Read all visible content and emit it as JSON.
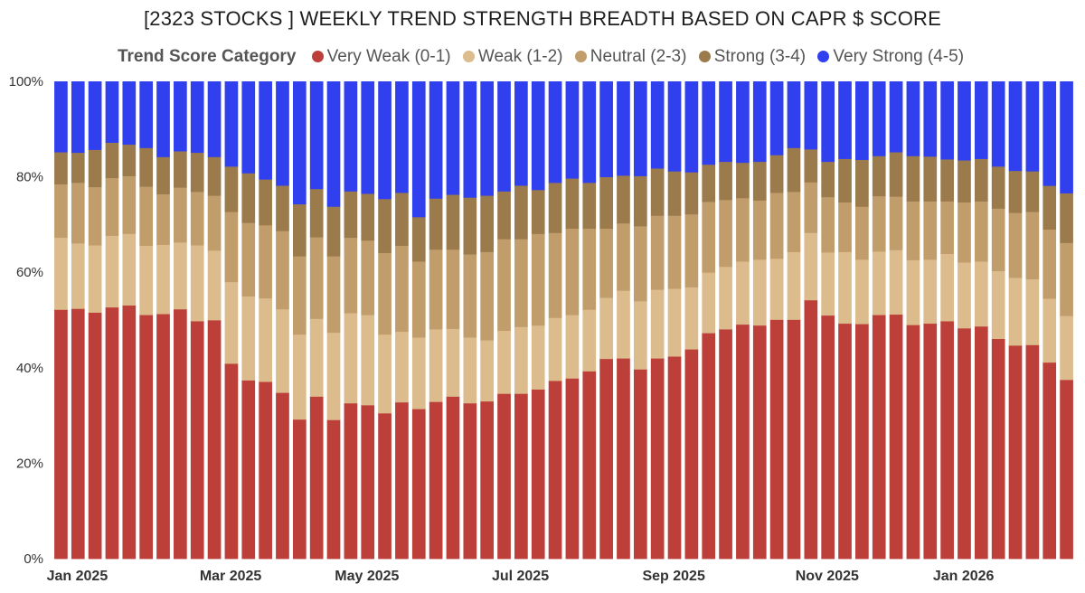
{
  "chart_data": {
    "type": "bar",
    "stacked": true,
    "normalized": true,
    "title": "[2323 STOCKS ] WEEKLY TREND STRENGTH BREADTH BASED ON CAPR $ SCORE",
    "legend_title": "Trend Score Category",
    "legend_position": "top",
    "y_ticks": [
      "0%",
      "20%",
      "40%",
      "60%",
      "80%",
      "100%"
    ],
    "ylim": [
      0,
      100
    ],
    "x_tick_labels": [
      {
        "index": 0,
        "label": "Jan 2025"
      },
      {
        "index": 9,
        "label": "Mar 2025"
      },
      {
        "index": 17,
        "label": "May 2025"
      },
      {
        "index": 26,
        "label": "Jul 2025"
      },
      {
        "index": 35,
        "label": "Sep 2025"
      },
      {
        "index": 44,
        "label": "Nov 2025"
      },
      {
        "index": 52,
        "label": "Jan 2026"
      }
    ],
    "n_weeks": 60,
    "series": [
      {
        "name": "Very Weak (0-1)",
        "color": "#bd3f3a",
        "values": [
          52.2,
          52.4,
          51.6,
          52.7,
          53.1,
          51.1,
          51.3,
          52.3,
          49.8,
          50.0,
          40.9,
          37.4,
          37.1,
          34.8,
          29.2,
          34.0,
          29.1,
          32.6,
          32.2,
          30.5,
          32.8,
          31.4,
          32.9,
          34.0,
          32.6,
          33.0,
          34.6,
          34.6,
          35.5,
          37.3,
          37.8,
          39.3,
          41.9,
          42.0,
          39.7,
          42.0,
          42.4,
          43.9,
          47.3,
          48.1,
          49.1,
          48.9,
          50.1,
          50.1,
          54.2,
          51.0,
          49.3,
          49.2,
          51.1,
          51.2,
          49.0,
          49.3,
          49.8,
          48.3,
          48.7,
          46.1,
          44.7,
          44.8,
          40.9,
          37.5
        ]
      },
      {
        "name": "Weak (1-2)",
        "color": "#dcbb8c",
        "values": [
          15.1,
          13.7,
          14.1,
          15.0,
          15.0,
          14.5,
          14.5,
          14.0,
          15.9,
          14.6,
          17.1,
          17.6,
          17.5,
          17.5,
          17.8,
          16.3,
          18.3,
          18.9,
          18.9,
          16.5,
          14.8,
          15.0,
          15.2,
          14.2,
          13.8,
          12.8,
          13.2,
          14.0,
          13.4,
          13.2,
          13.3,
          12.9,
          12.8,
          14.2,
          14.3,
          14.4,
          14.2,
          13.0,
          12.7,
          13.1,
          13.2,
          13.8,
          12.8,
          14.2,
          14.1,
          13.2,
          15.0,
          13.5,
          13.3,
          13.5,
          13.6,
          13.4,
          14.1,
          13.8,
          13.6,
          14.2,
          14.2,
          13.8,
          13.3,
          13.4
        ]
      },
      {
        "name": "Neutral (2-3)",
        "color": "#c19d6c",
        "values": [
          11.2,
          12.7,
          12.2,
          12.1,
          12.1,
          12.4,
          10.6,
          11.5,
          11.2,
          11.5,
          14.7,
          15.4,
          15.3,
          16.4,
          16.4,
          17.1,
          16.0,
          15.8,
          15.6,
          17.1,
          18.0,
          15.9,
          16.7,
          16.6,
          17.4,
          18.5,
          19.2,
          18.4,
          19.2,
          17.8,
          18.1,
          17.0,
          14.5,
          14.1,
          15.7,
          15.5,
          15.3,
          15.3,
          14.8,
          14.0,
          13.3,
          12.4,
          13.8,
          12.6,
          10.6,
          11.6,
          10.4,
          11.1,
          11.6,
          11.2,
          12.3,
          12.2,
          11.0,
          12.6,
          12.6,
          13.1,
          13.6,
          14.1,
          14.4,
          15.3
        ]
      },
      {
        "name": "Strong (3-4)",
        "color": "#9b7a4c",
        "values": [
          6.7,
          6.3,
          7.8,
          7.4,
          6.6,
          8.1,
          7.8,
          7.6,
          8.2,
          8.1,
          9.5,
          10.4,
          9.6,
          9.5,
          10.9,
          10.1,
          10.4,
          9.7,
          9.8,
          11.3,
          11.1,
          9.3,
          10.7,
          11.5,
          11.9,
          11.8,
          10.0,
          11.2,
          9.2,
          10.5,
          10.5,
          9.6,
          10.8,
          10.0,
          10.5,
          9.9,
          9.3,
          8.8,
          7.8,
          8.0,
          7.4,
          8.1,
          7.9,
          9.2,
          6.9,
          7.4,
          9.1,
          9.8,
          8.4,
          9.3,
          9.5,
          9.4,
          8.8,
          8.8,
          8.9,
          8.8,
          8.8,
          8.5,
          9.1,
          10.4
        ]
      },
      {
        "name": "Very Strong (4-5)",
        "color": "#3140ef",
        "values": [
          14.8,
          14.9,
          14.3,
          12.8,
          13.2,
          13.9,
          15.8,
          14.6,
          14.9,
          15.8,
          17.8,
          19.2,
          20.5,
          21.8,
          25.7,
          22.5,
          26.2,
          23.0,
          23.5,
          24.6,
          23.3,
          28.4,
          24.5,
          23.7,
          24.3,
          23.9,
          23.0,
          21.8,
          22.7,
          21.2,
          20.3,
          21.2,
          20.0,
          19.7,
          19.8,
          18.2,
          18.8,
          19.0,
          17.4,
          16.8,
          17.0,
          16.8,
          15.4,
          13.9,
          14.2,
          16.8,
          16.2,
          16.4,
          15.6,
          14.8,
          15.6,
          15.7,
          16.3,
          16.5,
          16.2,
          17.8,
          18.7,
          18.8,
          21.7,
          23.4
        ]
      }
    ]
  }
}
